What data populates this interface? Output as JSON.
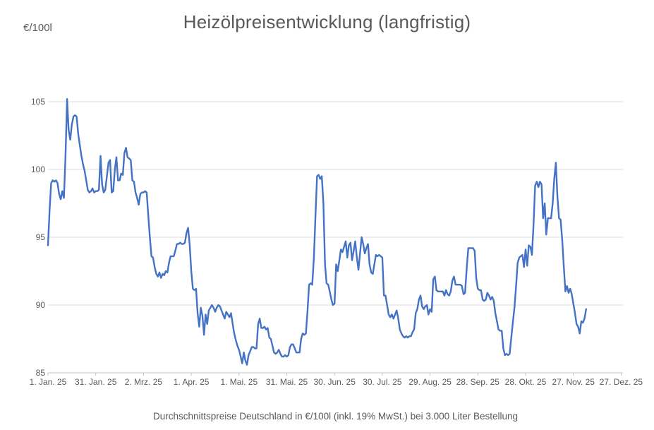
{
  "chart": {
    "title": "Heizölpreisentwicklung (langfristig)",
    "y_unit_label": "€/100l",
    "caption": "Durchschnittspreise Deutschland in €/100l (inkl. 19% MwSt.) bei 3.000 Liter Bestellung",
    "colors": {
      "line": "#4472C4",
      "gridline": "#DCDCDC",
      "axis": "#C0C0C0",
      "text": "#595959"
    }
  },
  "chart_data": {
    "type": "line",
    "title": "Heizölpreisentwicklung (langfristig)",
    "xlabel": "",
    "ylabel": "€/100l",
    "ylim": [
      85,
      105
    ],
    "y_ticks": [
      85,
      90,
      95,
      100,
      105
    ],
    "grid": "horizontal",
    "legend": "none",
    "x_axis": {
      "tick_labels": [
        "1. Jan. 25",
        "31. Jan. 25",
        "2. Mrz. 25",
        "1. Apr. 25",
        "1. Mai. 25",
        "31. Mai. 25",
        "30. Jun. 25",
        "30. Jul. 25",
        "29. Aug. 25",
        "28. Sep. 25",
        "28. Okt. 25",
        "27. Nov. 25",
        "27. Dez. 25"
      ],
      "tick_day_offsets": [
        0,
        30,
        60,
        90,
        120,
        150,
        180,
        210,
        240,
        270,
        300,
        330,
        360
      ],
      "days_per_tick": 30
    },
    "series_description": "daily average heating-oil price, day 0 = 1. Jan. 25, values in €/100l",
    "values": [
      94.4,
      97.0,
      99.0,
      99.2,
      99.1,
      99.2,
      99.0,
      98.2,
      97.8,
      98.4,
      97.9,
      100.9,
      105.2,
      102.9,
      102.2,
      103.3,
      103.9,
      104.0,
      103.9,
      102.6,
      101.8,
      101.0,
      100.4,
      99.9,
      99.2,
      98.5,
      98.3,
      98.4,
      98.6,
      98.3,
      98.4,
      98.4,
      98.5,
      101.0,
      98.9,
      98.3,
      98.5,
      99.5,
      100.5,
      100.7,
      98.3,
      98.4,
      100.0,
      100.9,
      99.2,
      99.2,
      99.7,
      99.6,
      101.2,
      101.6,
      100.9,
      100.8,
      100.7,
      99.2,
      99.1,
      98.3,
      97.9,
      97.4,
      98.2,
      98.3,
      98.3,
      98.4,
      98.3,
      96.6,
      95.0,
      93.6,
      93.5,
      92.8,
      92.3,
      92.1,
      92.4,
      92.0,
      92.3,
      92.2,
      92.5,
      92.4,
      93.1,
      93.6,
      93.6,
      93.6,
      94.0,
      94.5,
      94.5,
      94.6,
      94.5,
      94.5,
      94.6,
      95.3,
      95.7,
      94.5,
      92.5,
      91.2,
      91.1,
      91.2,
      89.4,
      88.4,
      89.8,
      89.2,
      87.8,
      89.3,
      88.6,
      89.6,
      89.8,
      90.0,
      89.8,
      89.5,
      89.8,
      90.0,
      89.9,
      89.6,
      89.3,
      89.0,
      89.5,
      89.3,
      89.1,
      89.4,
      88.6,
      87.9,
      87.4,
      87.0,
      86.7,
      86.2,
      85.7,
      86.5,
      85.9,
      85.6,
      86.3,
      86.6,
      86.9,
      86.9,
      86.8,
      86.8,
      88.6,
      89.0,
      88.3,
      88.3,
      88.4,
      88.2,
      88.3,
      87.6,
      87.5,
      87.0,
      86.5,
      86.4,
      86.5,
      86.7,
      86.4,
      86.2,
      86.2,
      86.3,
      86.2,
      86.3,
      86.9,
      87.1,
      87.1,
      86.8,
      86.5,
      86.5,
      86.5,
      87.5,
      87.9,
      87.8,
      87.9,
      89.5,
      91.5,
      91.6,
      91.5,
      93.5,
      96.5,
      99.5,
      99.6,
      99.3,
      99.5,
      97.5,
      93.0,
      91.6,
      91.5,
      91.0,
      90.4,
      90.0,
      90.1,
      93.0,
      92.5,
      93.3,
      94.1,
      93.9,
      94.3,
      94.7,
      93.5,
      94.4,
      94.6,
      93.3,
      94.0,
      94.7,
      93.5,
      92.6,
      93.8,
      95.0,
      94.5,
      93.8,
      94.2,
      94.5,
      93.0,
      92.4,
      92.3,
      93.0,
      93.7,
      93.6,
      93.7,
      93.6,
      93.5,
      90.7,
      90.7,
      90.0,
      89.3,
      89.1,
      89.3,
      89.0,
      89.3,
      89.6,
      89.0,
      88.2,
      87.9,
      87.7,
      87.6,
      87.7,
      87.6,
      87.7,
      87.7,
      88.0,
      88.2,
      89.4,
      89.7,
      90.4,
      90.7,
      89.9,
      89.7,
      89.9,
      90.0,
      89.3,
      89.7,
      89.5,
      91.9,
      92.1,
      91.1,
      91.0,
      91.0,
      91.0,
      91.0,
      90.7,
      91.1,
      90.8,
      90.7,
      91.0,
      91.8,
      92.1,
      91.5,
      91.5,
      91.5,
      91.5,
      91.4,
      90.8,
      90.9,
      92.7,
      94.2,
      94.2,
      94.2,
      94.2,
      94.0,
      92.0,
      91.2,
      91.1,
      91.1,
      90.4,
      90.3,
      90.4,
      90.9,
      90.7,
      90.4,
      90.6,
      90.3,
      89.4,
      88.8,
      88.2,
      88.1,
      88.1,
      86.8,
      86.3,
      86.4,
      86.3,
      86.4,
      87.6,
      88.7,
      89.8,
      91.4,
      93.1,
      93.5,
      93.6,
      93.7,
      92.8,
      94.1,
      92.9,
      94.4,
      94.3,
      93.7,
      96.0,
      98.8,
      99.1,
      98.7,
      99.1,
      98.9,
      96.4,
      97.5,
      95.2,
      96.4,
      96.4,
      96.4,
      97.5,
      99.3,
      100.5,
      98.0,
      96.4,
      96.3,
      94.8,
      92.8,
      91.0,
      91.4,
      90.9,
      91.2,
      90.8,
      90.1,
      89.4,
      88.6,
      88.4,
      87.9,
      88.8,
      88.7,
      89.0,
      89.7
    ]
  }
}
